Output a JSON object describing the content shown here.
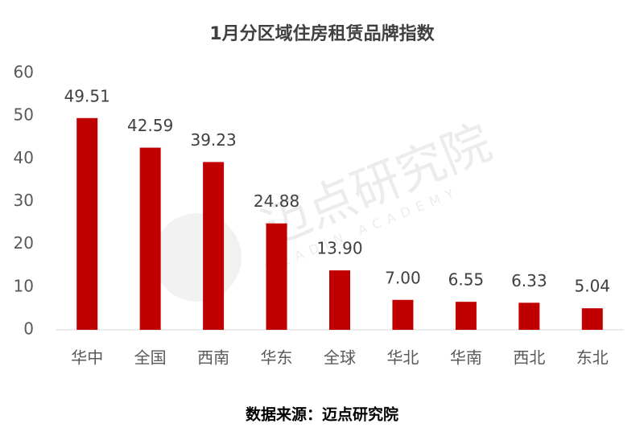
{
  "chart_data": {
    "type": "bar",
    "title": "1月分区域住房租赁品牌指数",
    "categories": [
      "华中",
      "全国",
      "西南",
      "华东",
      "全球",
      "华北",
      "华南",
      "西北",
      "东北"
    ],
    "values": [
      49.51,
      42.59,
      39.23,
      24.88,
      13.9,
      7.0,
      6.55,
      6.33,
      5.04
    ],
    "value_labels": [
      "49.51",
      "42.59",
      "39.23",
      "24.88",
      "13.90",
      "7.00",
      "6.55",
      "6.33",
      "5.04"
    ],
    "color": "#c00000",
    "ylim": [
      0,
      60
    ],
    "yticks": [
      0,
      10,
      20,
      30,
      40,
      50,
      60
    ],
    "grid": false,
    "source": "数据来源：迈点研究院",
    "watermark": "迈点研究院",
    "watermark_sub": "MEADIN ACADEMY"
  }
}
